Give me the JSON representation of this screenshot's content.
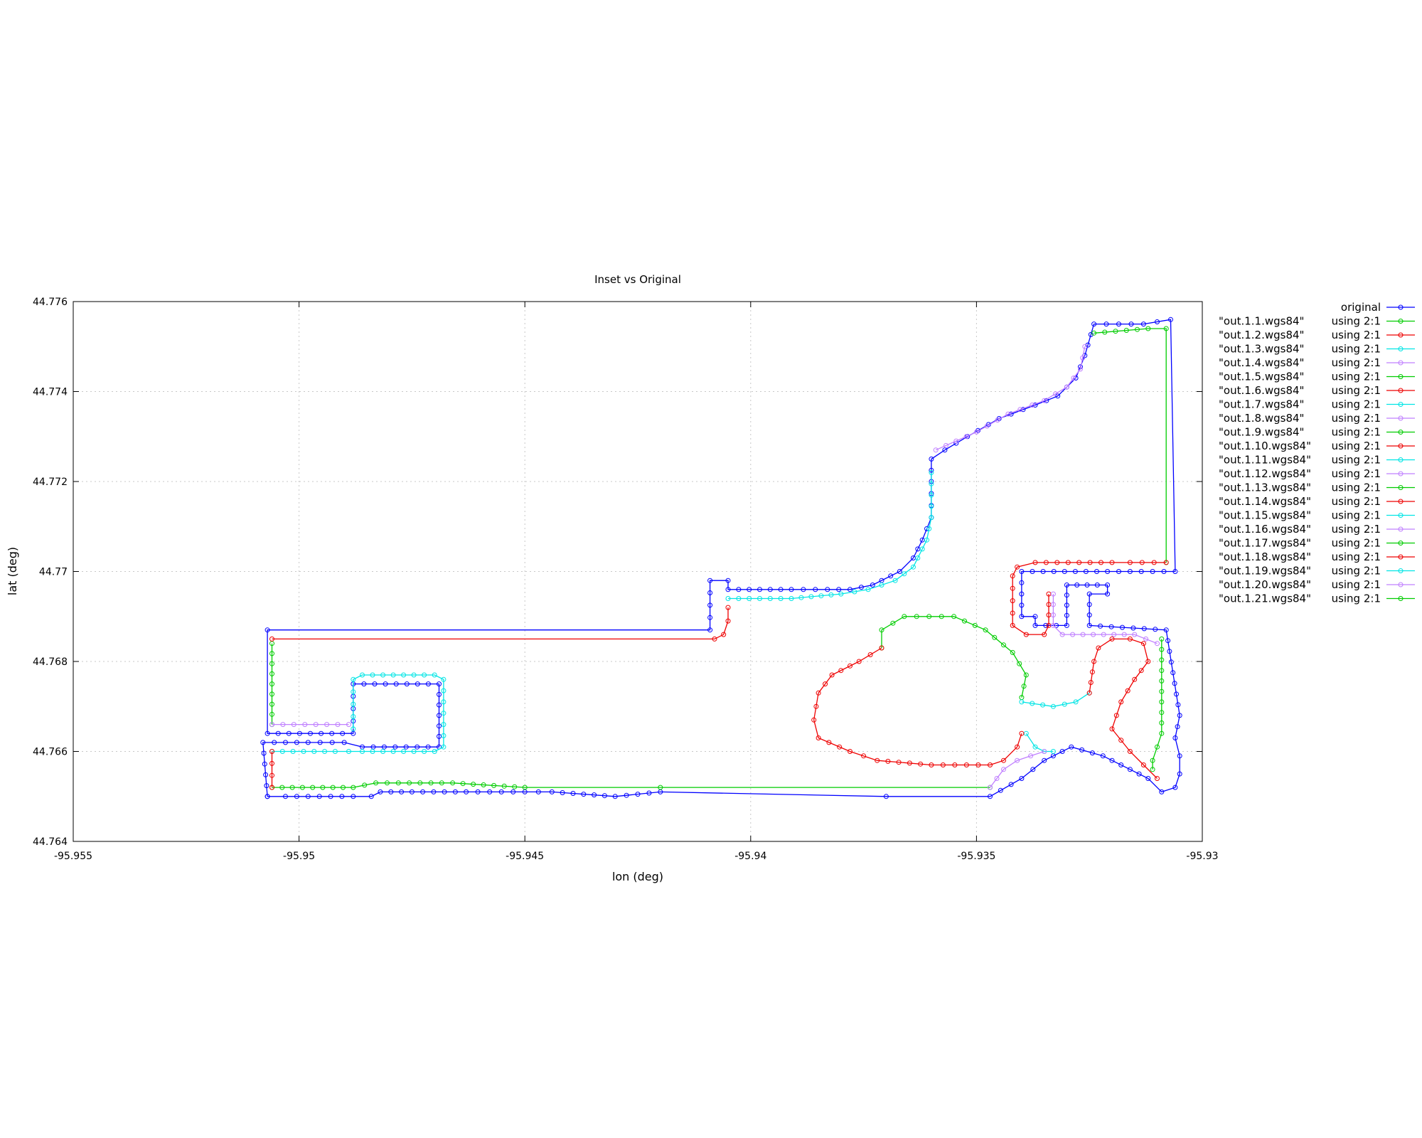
{
  "chart_data": {
    "type": "line",
    "title": "Inset vs Original",
    "xlabel": "lon (deg)",
    "ylabel": "lat (deg)",
    "xlim": [
      -95.955,
      -95.93
    ],
    "ylim": [
      44.764,
      44.776
    ],
    "x_ticks": [
      "-95.955",
      "-95.95",
      "-95.945",
      "-95.94",
      "-95.935",
      "-95.93"
    ],
    "y_ticks": [
      "44.764",
      "44.766",
      "44.768",
      "44.77",
      "44.772",
      "44.774",
      "44.776"
    ],
    "grid": true,
    "legend_position": "outside-right",
    "legend_suffix": "using 2:1",
    "series": [
      {
        "name": "original",
        "color": "#0000ff",
        "points": [
          [
            -95.9507,
            44.765
          ],
          [
            -95.9503,
            44.765
          ],
          [
            -95.9488,
            44.765
          ],
          [
            -95.9484,
            44.765
          ],
          [
            -95.9482,
            44.7651
          ],
          [
            -95.9475,
            44.7651
          ],
          [
            -95.9463,
            44.7651
          ],
          [
            -95.945,
            44.7651
          ],
          [
            -95.9444,
            44.7651
          ],
          [
            -95.943,
            44.765
          ],
          [
            -95.942,
            44.7651
          ],
          [
            -95.937,
            44.765
          ],
          [
            -95.9347,
            44.765
          ],
          [
            -95.934,
            44.7654
          ],
          [
            -95.9335,
            44.7658
          ],
          [
            -95.9329,
            44.7661
          ],
          [
            -95.9322,
            44.7659
          ],
          [
            -95.9316,
            44.7656
          ],
          [
            -95.9312,
            44.7654
          ],
          [
            -95.9309,
            44.7651
          ],
          [
            -95.9306,
            44.7652
          ],
          [
            -95.9305,
            44.7655
          ],
          [
            -95.9305,
            44.7659
          ],
          [
            -95.9306,
            44.7663
          ],
          [
            -95.9305,
            44.7668
          ],
          [
            -95.9308,
            44.7687
          ],
          [
            -95.9325,
            44.7688
          ],
          [
            -95.9325,
            44.7695
          ],
          [
            -95.9321,
            44.7695
          ],
          [
            -95.9321,
            44.7697
          ],
          [
            -95.933,
            44.7697
          ],
          [
            -95.933,
            44.7688
          ],
          [
            -95.9337,
            44.7688
          ],
          [
            -95.9337,
            44.769
          ],
          [
            -95.934,
            44.769
          ],
          [
            -95.934,
            44.77
          ],
          [
            -95.9321,
            44.77
          ],
          [
            -95.9306,
            44.77
          ],
          [
            -95.9307,
            44.7756
          ],
          [
            -95.9313,
            44.7755
          ],
          [
            -95.9324,
            44.7755
          ],
          [
            -95.9326,
            44.7748
          ],
          [
            -95.9328,
            44.7743
          ],
          [
            -95.9332,
            44.7739
          ],
          [
            -95.9337,
            44.7737
          ],
          [
            -95.9345,
            44.7734
          ],
          [
            -95.9352,
            44.773
          ],
          [
            -95.9357,
            44.7727
          ],
          [
            -95.936,
            44.7725
          ],
          [
            -95.936,
            44.772
          ],
          [
            -95.936,
            44.7712
          ],
          [
            -95.9362,
            44.7707
          ],
          [
            -95.9364,
            44.7703
          ],
          [
            -95.9367,
            44.77
          ],
          [
            -95.9373,
            44.7697
          ],
          [
            -95.9378,
            44.7696
          ],
          [
            -95.9383,
            44.7696
          ],
          [
            -95.9391,
            44.7696
          ],
          [
            -95.9405,
            44.7696
          ],
          [
            -95.9405,
            44.7698
          ],
          [
            -95.9409,
            44.7698
          ],
          [
            -95.9409,
            44.7687
          ],
          [
            -95.9507,
            44.7687
          ],
          [
            -95.9507,
            44.7664
          ],
          [
            -95.9488,
            44.7664
          ],
          [
            -95.9488,
            44.7675
          ],
          [
            -95.9469,
            44.7675
          ],
          [
            -95.9469,
            44.7661
          ],
          [
            -95.9486,
            44.7661
          ],
          [
            -95.949,
            44.7662
          ],
          [
            -95.9498,
            44.7662
          ],
          [
            -95.9508,
            44.7662
          ],
          [
            -95.9507,
            44.765
          ]
        ]
      },
      {
        "name": "\"out.1.1.wgs84\"",
        "color": "#00cc00",
        "points": [
          [
            -95.9324,
            44.7753
          ],
          [
            -95.9312,
            44.7754
          ],
          [
            -95.9308,
            44.7754
          ],
          [
            -95.9308,
            44.7702
          ]
        ]
      },
      {
        "name": "\"out.1.2.wgs84\"",
        "color": "#ee0000",
        "points": [
          [
            -95.9308,
            44.7702
          ],
          [
            -95.9316,
            44.7702
          ],
          [
            -95.932,
            44.7702
          ],
          [
            -95.9337,
            44.7702
          ],
          [
            -95.9341,
            44.7701
          ],
          [
            -95.9342,
            44.7699
          ],
          [
            -95.9342,
            44.7688
          ],
          [
            -95.9339,
            44.7686
          ],
          [
            -95.9335,
            44.7686
          ],
          [
            -95.9334,
            44.7688
          ],
          [
            -95.9334,
            44.7695
          ]
        ]
      },
      {
        "name": "\"out.1.3.wgs84\"",
        "color": "#00e5e5",
        "points": [
          [
            -95.936,
            44.7722
          ],
          [
            -95.936,
            44.7712
          ],
          [
            -95.9361,
            44.7707
          ],
          [
            -95.9364,
            44.7701
          ],
          [
            -95.9368,
            44.7698
          ],
          [
            -95.9374,
            44.7696
          ],
          [
            -95.938,
            44.7695
          ],
          [
            -95.9391,
            44.7694
          ],
          [
            -95.9405,
            44.7694
          ]
        ]
      },
      {
        "name": "\"out.1.4.wgs84\"",
        "color": "#c080ff",
        "points": [
          [
            -95.9359,
            44.7727
          ],
          [
            -95.935,
            44.7731
          ],
          [
            -95.9343,
            44.7735
          ],
          [
            -95.9335,
            44.7738
          ],
          [
            -95.933,
            44.7741
          ],
          [
            -95.9327,
            44.7745
          ],
          [
            -95.9326,
            44.775
          ]
        ]
      },
      {
        "name": "\"out.1.5.wgs84\"",
        "color": "#00cc00",
        "points": [
          [
            -95.9506,
            44.7684
          ],
          [
            -95.9506,
            44.7666
          ]
        ]
      },
      {
        "name": "\"out.1.6.wgs84\"",
        "color": "#ee0000",
        "points": [
          [
            -95.9506,
            44.7685
          ],
          [
            -95.9408,
            44.7685
          ],
          [
            -95.9406,
            44.7686
          ],
          [
            -95.9405,
            44.7689
          ],
          [
            -95.9405,
            44.7692
          ]
        ]
      },
      {
        "name": "\"out.1.7.wgs84\"",
        "color": "#00e5e5",
        "points": [
          [
            -95.9488,
            44.7665
          ],
          [
            -95.9488,
            44.7676
          ],
          [
            -95.9486,
            44.7677
          ],
          [
            -95.947,
            44.7677
          ],
          [
            -95.9468,
            44.7676
          ],
          [
            -95.9468,
            44.7661
          ],
          [
            -95.947,
            44.766
          ],
          [
            -95.9486,
            44.766
          ],
          [
            -95.9492,
            44.766
          ],
          [
            -95.9506,
            44.766
          ]
        ]
      },
      {
        "name": "\"out.1.8.wgs84\"",
        "color": "#c080ff",
        "points": [
          [
            -95.9506,
            44.7666
          ],
          [
            -95.9489,
            44.7666
          ]
        ]
      },
      {
        "name": "\"out.1.9.wgs84\"",
        "color": "#00cc00",
        "points": [
          [
            -95.9506,
            44.7652
          ],
          [
            -95.9488,
            44.7652
          ],
          [
            -95.9483,
            44.7653
          ],
          [
            -95.9478,
            44.7653
          ],
          [
            -95.9466,
            44.7653
          ],
          [
            -95.945,
            44.7652
          ],
          [
            -95.942,
            44.7652
          ],
          [
            -95.9347,
            44.7652
          ]
        ]
      },
      {
        "name": "\"out.1.10.wgs84\"",
        "color": "#ee0000",
        "points": [
          [
            -95.9506,
            44.7652
          ],
          [
            -95.9506,
            44.766
          ]
        ]
      },
      {
        "name": "\"out.1.11.wgs84\"",
        "color": "#00e5e5",
        "points": [
          [
            -95.9339,
            44.7664
          ],
          [
            -95.9337,
            44.7661
          ],
          [
            -95.9335,
            44.766
          ],
          [
            -95.9333,
            44.766
          ]
        ]
      },
      {
        "name": "\"out.1.12.wgs84\"",
        "color": "#c080ff",
        "points": [
          [
            -95.9347,
            44.7652
          ],
          [
            -95.9344,
            44.7656
          ],
          [
            -95.9341,
            44.7658
          ],
          [
            -95.9338,
            44.7659
          ],
          [
            -95.9335,
            44.766
          ]
        ]
      },
      {
        "name": "\"out.1.13.wgs84\"",
        "color": "#00cc00",
        "points": [
          [
            -95.9371,
            44.7683
          ],
          [
            -95.9371,
            44.7687
          ],
          [
            -95.9366,
            44.769
          ],
          [
            -95.9355,
            44.769
          ],
          [
            -95.9348,
            44.7687
          ],
          [
            -95.9342,
            44.7682
          ],
          [
            -95.9339,
            44.7677
          ],
          [
            -95.934,
            44.7672
          ]
        ]
      },
      {
        "name": "\"out.1.14.wgs84\"",
        "color": "#ee0000",
        "points": [
          [
            -95.9371,
            44.7683
          ],
          [
            -95.9376,
            44.768
          ],
          [
            -95.9382,
            44.7677
          ],
          [
            -95.9385,
            44.7673
          ],
          [
            -95.9386,
            44.7667
          ],
          [
            -95.9385,
            44.7663
          ],
          [
            -95.9378,
            44.766
          ],
          [
            -95.9372,
            44.7658
          ],
          [
            -95.936,
            44.7657
          ],
          [
            -95.9347,
            44.7657
          ],
          [
            -95.9344,
            44.7658
          ],
          [
            -95.9341,
            44.7661
          ],
          [
            -95.934,
            44.7664
          ]
        ]
      },
      {
        "name": "\"out.1.15.wgs84\"",
        "color": "#00e5e5",
        "points": [
          [
            -95.934,
            44.7671
          ],
          [
            -95.9333,
            44.767
          ],
          [
            -95.9328,
            44.7671
          ],
          [
            -95.9325,
            44.7673
          ]
        ]
      },
      {
        "name": "\"out.1.16.wgs84\"",
        "color": "#c080ff",
        "points": [
          [
            -95.9333,
            44.7695
          ],
          [
            -95.9333,
            44.7688
          ],
          [
            -95.9331,
            44.7686
          ],
          [
            -95.9315,
            44.7686
          ],
          [
            -95.931,
            44.7684
          ]
        ]
      },
      {
        "name": "\"out.1.17.wgs84\"",
        "color": "#00cc00",
        "points": [
          [
            -95.9309,
            44.7685
          ],
          [
            -95.9309,
            44.7664
          ],
          [
            -95.931,
            44.7661
          ],
          [
            -95.9311,
            44.7658
          ],
          [
            -95.9311,
            44.7656
          ]
        ]
      },
      {
        "name": "\"out.1.18.wgs84\"",
        "color": "#ee0000",
        "points": [
          [
            -95.9325,
            44.7673
          ],
          [
            -95.9324,
            44.768
          ],
          [
            -95.9323,
            44.7683
          ],
          [
            -95.932,
            44.7685
          ],
          [
            -95.9316,
            44.7685
          ],
          [
            -95.9313,
            44.7684
          ],
          [
            -95.9312,
            44.768
          ],
          [
            -95.9315,
            44.7676
          ],
          [
            -95.9318,
            44.7671
          ],
          [
            -95.932,
            44.7665
          ],
          [
            -95.9316,
            44.766
          ],
          [
            -95.9313,
            44.7657
          ],
          [
            -95.931,
            44.7654
          ]
        ]
      },
      {
        "name": "\"out.1.19.wgs84\"",
        "color": "#00e5e5",
        "points": []
      },
      {
        "name": "\"out.1.20.wgs84\"",
        "color": "#c080ff",
        "points": []
      },
      {
        "name": "\"out.1.21.wgs84\"",
        "color": "#00cc00",
        "points": []
      }
    ]
  }
}
